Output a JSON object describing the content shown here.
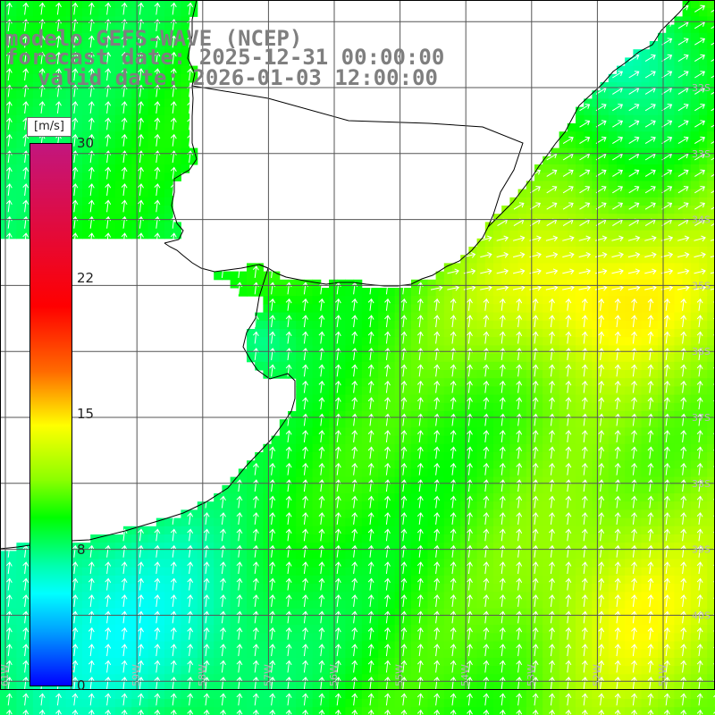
{
  "title": {
    "line1": "modelo GEFS-WAVE (NCEP)",
    "line2": "forecast date: 2025-12-31 00:00:00",
    "line3": "valid date: 2026-01-03 12:00:00"
  },
  "colorbar": {
    "unit": "[m/s]",
    "ticks": [
      "30",
      "22",
      "15",
      "8",
      "0"
    ],
    "tick_values": [
      30,
      22,
      15,
      8,
      0
    ],
    "colors": [
      "#0000ff",
      "#00a0ff",
      "#00ffff",
      "#00ffb0",
      "#00ff00",
      "#8cff00",
      "#ffff00",
      "#ff6a00",
      "#ff0000",
      "#c2167e"
    ]
  },
  "map": {
    "lat_labels": [
      "32S",
      "33S",
      "34S",
      "35S",
      "36S",
      "37S",
      "38S",
      "39S",
      "40S"
    ],
    "lon_labels": [
      "61W",
      "60W",
      "59W",
      "58W",
      "57W",
      "56W",
      "55W",
      "54W",
      "53W",
      "52W",
      "51W",
      "50W"
    ],
    "lon_range": [
      -61.8,
      -50.9
    ],
    "lat_range": [
      -41.0,
      -31.5
    ],
    "land_color": "#ffffff",
    "coast_color": "#000000",
    "grid_color": "#555555",
    "arrow_color": "#ffffff",
    "wind_direction": "mostly from south (arrows pointing north); from southwest near the Brazilian coast"
  }
}
